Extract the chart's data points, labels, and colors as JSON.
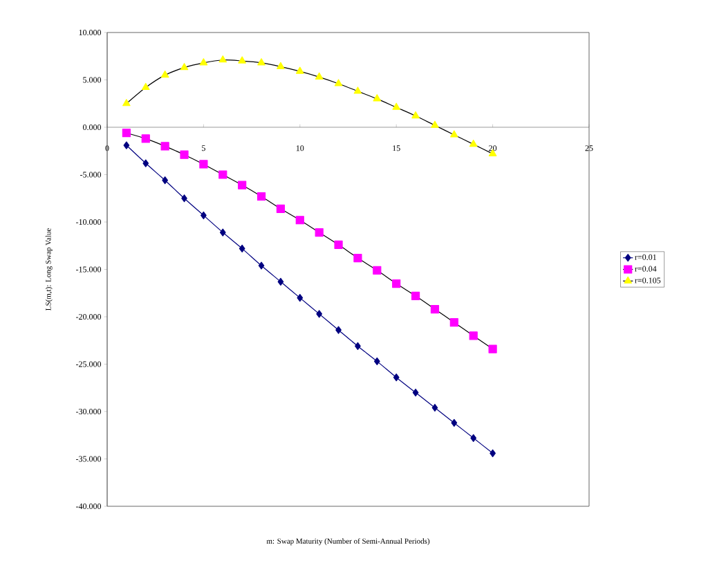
{
  "chart_data": {
    "type": "line",
    "xlabel": "m: Swap Maturity (Number of Semi-Annual Periods)",
    "ylabel": "LS(m,t): Long Swap Value",
    "x": [
      1,
      2,
      3,
      4,
      5,
      6,
      7,
      8,
      9,
      10,
      11,
      12,
      13,
      14,
      15,
      16,
      17,
      18,
      19,
      20
    ],
    "series": [
      {
        "name": "r=0.01",
        "color": "#000080",
        "marker": "diamond",
        "values": [
          -1.9,
          -3.8,
          -5.6,
          -7.5,
          -9.3,
          -11.1,
          -12.8,
          -14.6,
          -16.3,
          -18.0,
          -19.7,
          -21.4,
          -23.1,
          -24.7,
          -26.4,
          -28.0,
          -29.6,
          -31.2,
          -32.8,
          -34.4
        ]
      },
      {
        "name": "r=0.04",
        "color": "#ff00ff",
        "marker": "square",
        "values": [
          -0.6,
          -1.2,
          -2.0,
          -2.9,
          -3.9,
          -5.0,
          -6.1,
          -7.3,
          -8.6,
          -9.8,
          -11.1,
          -12.4,
          -13.8,
          -15.1,
          -16.5,
          -17.8,
          -19.2,
          -20.6,
          -22.0,
          -23.4
        ]
      },
      {
        "name": "r=0.105",
        "color": "#ffff00",
        "marker": "triangle",
        "values": [
          2.5,
          4.2,
          5.5,
          6.3,
          6.8,
          7.1,
          7.0,
          6.8,
          6.4,
          5.9,
          5.3,
          4.6,
          3.8,
          3.0,
          2.1,
          1.2,
          0.2,
          -0.8,
          -1.8,
          -2.8
        ]
      }
    ],
    "xlim": [
      0,
      25
    ],
    "xticks": [
      0,
      5,
      10,
      15,
      20,
      25
    ],
    "ylim": [
      -40,
      10
    ],
    "yticks": [
      {
        "value": -40,
        "label": "-40.000"
      },
      {
        "value": -35,
        "label": "-35.000"
      },
      {
        "value": -30,
        "label": "-30.000"
      },
      {
        "value": -25,
        "label": "-25.000"
      },
      {
        "value": -20,
        "label": "-20.000"
      },
      {
        "value": -15,
        "label": "-15.000"
      },
      {
        "value": -10,
        "label": "-10.000"
      },
      {
        "value": -5,
        "label": "-5.000"
      },
      {
        "value": 0,
        "label": "0.000"
      },
      {
        "value": 5,
        "label": "5.000"
      },
      {
        "value": 10,
        "label": "10.000"
      }
    ],
    "grid": false,
    "legend": "right",
    "line_style": "solid"
  }
}
